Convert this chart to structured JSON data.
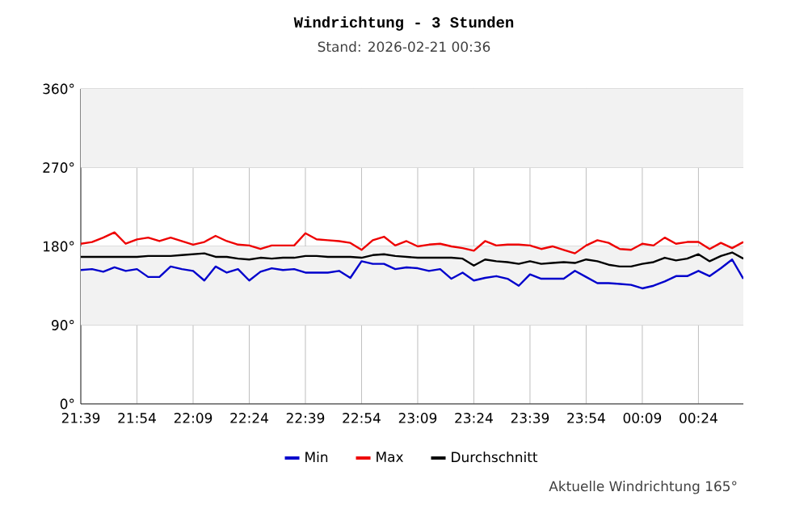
{
  "chart_data": {
    "type": "line",
    "title": "Windrichtung - 3 Stunden",
    "subtitle": "Stand: 2026-02-21 00:36",
    "annotations": [
      "Aktuelle Windrichtung 165°"
    ],
    "x": [
      "2026-02-20T21:39",
      "2026-02-20T21:42",
      "2026-02-20T21:45",
      "2026-02-20T21:48",
      "2026-02-20T21:51",
      "2026-02-20T21:54",
      "2026-02-20T21:57",
      "2026-02-20T22:00",
      "2026-02-20T22:03",
      "2026-02-20T22:06",
      "2026-02-20T22:09",
      "2026-02-20T22:12",
      "2026-02-20T22:15",
      "2026-02-20T22:18",
      "2026-02-20T22:21",
      "2026-02-20T22:24",
      "2026-02-20T22:27",
      "2026-02-20T22:30",
      "2026-02-20T22:33",
      "2026-02-20T22:36",
      "2026-02-20T22:39",
      "2026-02-20T22:42",
      "2026-02-20T22:45",
      "2026-02-20T22:48",
      "2026-02-20T22:51",
      "2026-02-20T22:54",
      "2026-02-20T22:57",
      "2026-02-20T23:00",
      "2026-02-20T23:03",
      "2026-02-20T23:06",
      "2026-02-20T23:09",
      "2026-02-20T23:12",
      "2026-02-20T23:15",
      "2026-02-20T23:18",
      "2026-02-20T23:21",
      "2026-02-20T23:24",
      "2026-02-20T23:27",
      "2026-02-20T23:30",
      "2026-02-20T23:33",
      "2026-02-20T23:36",
      "2026-02-20T23:39",
      "2026-02-20T23:42",
      "2026-02-20T23:45",
      "2026-02-20T23:48",
      "2026-02-20T23:51",
      "2026-02-20T23:54",
      "2026-02-20T23:57",
      "2026-02-21T00:00",
      "2026-02-21T00:03",
      "2026-02-21T00:06",
      "2026-02-21T00:09",
      "2026-02-21T00:12",
      "2026-02-21T00:15",
      "2026-02-21T00:18",
      "2026-02-21T00:21",
      "2026-02-21T00:24",
      "2026-02-21T00:27",
      "2026-02-21T00:30",
      "2026-02-21T00:33",
      "2026-02-21T00:36"
    ],
    "series": [
      {
        "name": "Min",
        "color": "#0000cc",
        "values": [
          153,
          154,
          151,
          156,
          152,
          154,
          145,
          145,
          157,
          154,
          152,
          141,
          157,
          150,
          154,
          141,
          151,
          155,
          153,
          154,
          150,
          150,
          150,
          152,
          144,
          163,
          160,
          160,
          154,
          156,
          155,
          152,
          154,
          143,
          150,
          141,
          144,
          146,
          143,
          135,
          148,
          143,
          143,
          143,
          152,
          145,
          138,
          138,
          137,
          136,
          132,
          135,
          140,
          146,
          146,
          152,
          146,
          155,
          165,
          143
        ]
      },
      {
        "name": "Max",
        "color": "#ee0000",
        "values": [
          183,
          185,
          190,
          196,
          183,
          188,
          190,
          186,
          190,
          186,
          182,
          185,
          192,
          186,
          182,
          181,
          177,
          181,
          181,
          181,
          195,
          188,
          187,
          186,
          184,
          176,
          187,
          191,
          181,
          186,
          180,
          182,
          183,
          180,
          178,
          175,
          186,
          181,
          182,
          182,
          181,
          177,
          180,
          176,
          172,
          181,
          187,
          184,
          177,
          176,
          183,
          181,
          190,
          183,
          185,
          185,
          177,
          184,
          178,
          185
        ]
      },
      {
        "name": "Durchschnitt",
        "color": "#000000",
        "values": [
          168,
          168,
          168,
          168,
          168,
          168,
          169,
          169,
          169,
          170,
          171,
          172,
          168,
          168,
          166,
          165,
          167,
          166,
          167,
          167,
          169,
          169,
          168,
          168,
          168,
          167,
          170,
          171,
          169,
          168,
          167,
          167,
          167,
          167,
          166,
          158,
          165,
          163,
          162,
          160,
          163,
          160,
          161,
          162,
          161,
          165,
          163,
          159,
          157,
          157,
          160,
          162,
          167,
          164,
          166,
          171,
          163,
          169,
          173,
          166
        ]
      }
    ],
    "xlim": [
      "2026-02-20T21:39",
      "2026-02-21T00:36"
    ],
    "xticks": [
      {
        "value": "2026-02-20T21:39",
        "label": "21:39"
      },
      {
        "value": "2026-02-20T21:54",
        "label": "21:54"
      },
      {
        "value": "2026-02-20T22:09",
        "label": "22:09"
      },
      {
        "value": "2026-02-20T22:24",
        "label": "22:24"
      },
      {
        "value": "2026-02-20T22:39",
        "label": "22:39"
      },
      {
        "value": "2026-02-20T22:54",
        "label": "22:54"
      },
      {
        "value": "2026-02-20T23:09",
        "label": "23:09"
      },
      {
        "value": "2026-02-20T23:24",
        "label": "23:24"
      },
      {
        "value": "2026-02-20T23:39",
        "label": "23:39"
      },
      {
        "value": "2026-02-20T23:54",
        "label": "23:54"
      },
      {
        "value": "2026-02-21T00:09",
        "label": "00:09"
      },
      {
        "value": "2026-02-21T00:24",
        "label": "00:24"
      }
    ],
    "ylim": [
      0,
      360
    ],
    "yticks": [
      {
        "value": 0,
        "label": "0°"
      },
      {
        "value": 90,
        "label": "90°"
      },
      {
        "value": 180,
        "label": "180°"
      },
      {
        "value": 270,
        "label": "270°"
      },
      {
        "value": 360,
        "label": "360°"
      }
    ],
    "bands": [
      {
        "axis": "y",
        "from": 90,
        "to": 180,
        "color": "#f2f2f2"
      },
      {
        "axis": "y",
        "from": 270,
        "to": 360,
        "color": "#f2f2f2"
      }
    ],
    "grid": true,
    "legend": "bottom",
    "line_style": "solid"
  }
}
